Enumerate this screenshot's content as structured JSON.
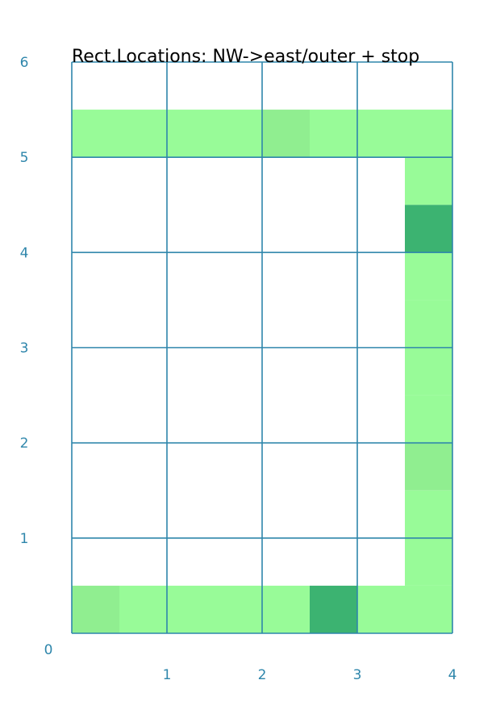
{
  "chart_data": {
    "type": "heatmap",
    "title": "Rect.Locations: NW->east/outer + stop",
    "xlabel": "",
    "ylabel": "",
    "xlim": [
      0,
      4
    ],
    "ylim": [
      0,
      6
    ],
    "x_ticks": [
      "0",
      "1",
      "2",
      "3",
      "4"
    ],
    "y_ticks": [
      "1",
      "2",
      "3",
      "4",
      "5",
      "6"
    ],
    "grid": true,
    "cell_size": 0.5,
    "cells": [
      {
        "x": 0.0,
        "y": 5.0,
        "color": "#98fb98"
      },
      {
        "x": 0.5,
        "y": 5.0,
        "color": "#98fb98"
      },
      {
        "x": 1.0,
        "y": 5.0,
        "color": "#98fb98"
      },
      {
        "x": 1.5,
        "y": 5.0,
        "color": "#98fb98"
      },
      {
        "x": 2.0,
        "y": 5.0,
        "color": "#90ee90"
      },
      {
        "x": 2.5,
        "y": 5.0,
        "color": "#98fb98"
      },
      {
        "x": 3.0,
        "y": 5.0,
        "color": "#98fb98"
      },
      {
        "x": 3.5,
        "y": 5.0,
        "color": "#98fb98"
      },
      {
        "x": 3.5,
        "y": 4.5,
        "color": "#98fb98"
      },
      {
        "x": 3.5,
        "y": 4.0,
        "color": "#3cb371"
      },
      {
        "x": 3.5,
        "y": 3.5,
        "color": "#98fb98"
      },
      {
        "x": 3.5,
        "y": 3.0,
        "color": "#98fb98"
      },
      {
        "x": 3.5,
        "y": 2.5,
        "color": "#98fb98"
      },
      {
        "x": 3.5,
        "y": 2.0,
        "color": "#98fb98"
      },
      {
        "x": 3.5,
        "y": 1.5,
        "color": "#90ee90"
      },
      {
        "x": 3.5,
        "y": 1.0,
        "color": "#98fb98"
      },
      {
        "x": 3.5,
        "y": 0.5,
        "color": "#98fb98"
      },
      {
        "x": 0.0,
        "y": 0.0,
        "color": "#90ee90"
      },
      {
        "x": 0.5,
        "y": 0.0,
        "color": "#98fb98"
      },
      {
        "x": 1.0,
        "y": 0.0,
        "color": "#98fb98"
      },
      {
        "x": 1.5,
        "y": 0.0,
        "color": "#98fb98"
      },
      {
        "x": 2.0,
        "y": 0.0,
        "color": "#98fb98"
      },
      {
        "x": 2.5,
        "y": 0.0,
        "color": "#3cb371"
      },
      {
        "x": 3.0,
        "y": 0.0,
        "color": "#98fb98"
      },
      {
        "x": 3.5,
        "y": 0.0,
        "color": "#98fb98"
      }
    ]
  },
  "colors": {
    "grid_line": "#2e86ab",
    "tick_label": "#2e86ab",
    "light_green": "#98fb98",
    "mid_green": "#90ee90",
    "dark_green": "#3cb371"
  }
}
